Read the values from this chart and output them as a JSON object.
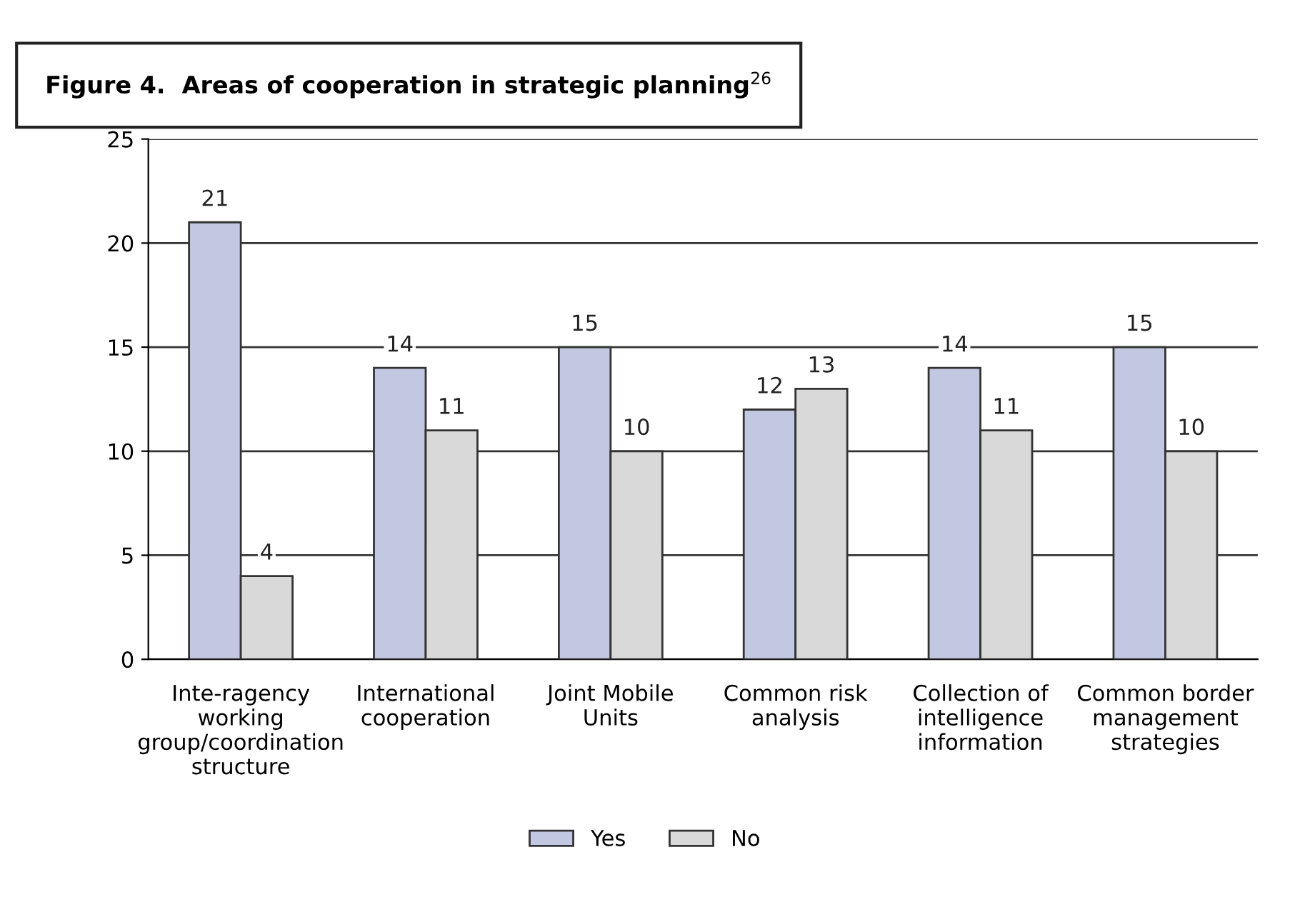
{
  "chart_data": {
    "type": "bar",
    "title": "Figure 4.  Areas of cooperation in strategic planning$^{26}$",
    "categories": [
      "Inte-ragency working group/coordination structure",
      "International cooperation",
      "Joint Mobile Units",
      "Common risk analysis",
      "Collection of intelligence information",
      "Common border management strategies"
    ],
    "series": [
      {
        "name": "Yes",
        "color": "#c3c8e2",
        "values": [
          21,
          14,
          15,
          12,
          14,
          15
        ]
      },
      {
        "name": "No",
        "color": "#d9d9d9",
        "values": [
          4,
          11,
          10,
          13,
          11,
          10
        ]
      }
    ],
    "ylim": [
      0,
      25
    ],
    "yticks": [
      0,
      5,
      10,
      15,
      20,
      25
    ],
    "grid": "y",
    "legend": "bottom",
    "data_labels": true
  }
}
